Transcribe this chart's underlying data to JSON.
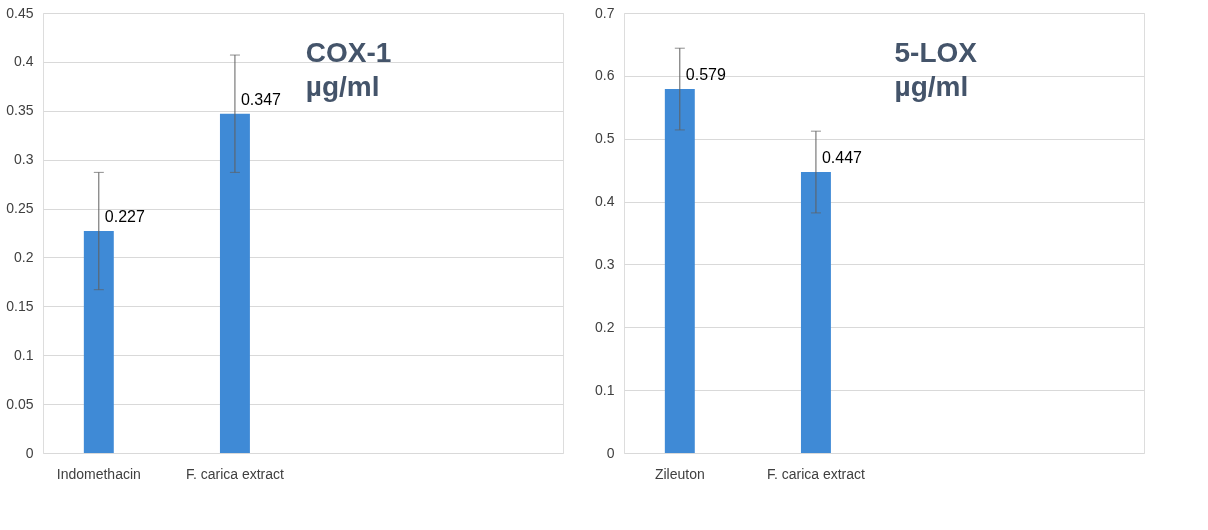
{
  "chart_data": [
    {
      "type": "bar",
      "title": "COX-1 µg/ml",
      "categories": [
        "Indomethacin",
        "F. carica extract"
      ],
      "values": [
        0.227,
        0.347
      ],
      "errors": [
        0.06,
        0.06
      ],
      "color": "#3f8ad6",
      "ylim": [
        0,
        0.45
      ],
      "yticks": [
        0,
        0.05,
        0.1,
        0.15,
        0.2,
        0.25,
        0.3,
        0.35,
        0.4,
        0.45
      ],
      "grid": "y",
      "data_labels": true
    },
    {
      "type": "bar",
      "title": "5-LOX µg/ml",
      "categories": [
        "Zileuton",
        "F. carica extract"
      ],
      "values": [
        0.579,
        0.447
      ],
      "errors": [
        0.065,
        0.065
      ],
      "color": "#3f8ad6",
      "ylim": [
        0,
        0.7
      ],
      "yticks": [
        0,
        0.1,
        0.2,
        0.3,
        0.4,
        0.5,
        0.6,
        0.7
      ],
      "grid": "y",
      "data_labels": true
    }
  ]
}
